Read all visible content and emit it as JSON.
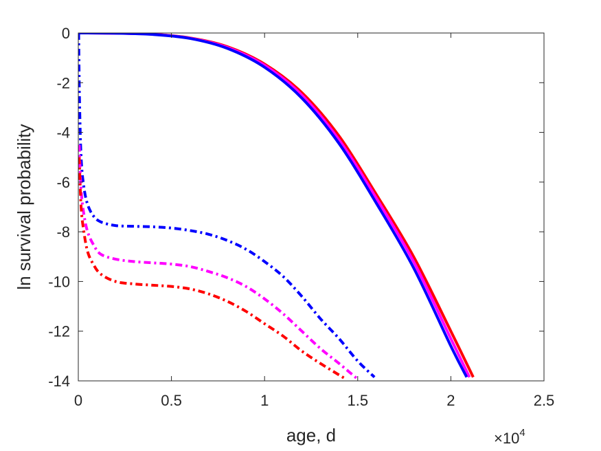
{
  "chart_data": {
    "type": "line",
    "xlabel": "age, d",
    "ylabel": "ln survival probability",
    "x_multiplier": {
      "base": "×10",
      "exponent": "4"
    },
    "xlim": [
      0,
      25000
    ],
    "ylim": [
      -14,
      0
    ],
    "xticks": [
      0,
      5000,
      10000,
      15000,
      20000,
      25000
    ],
    "xtick_labels": [
      "0",
      "0.5",
      "1",
      "1.5",
      "2",
      "2.5"
    ],
    "yticks": [
      0,
      -2,
      -4,
      -6,
      -8,
      -10,
      -12,
      -14
    ],
    "ytick_labels": [
      "0",
      "-2",
      "-4",
      "-6",
      "-8",
      "-10",
      "-12",
      "-14"
    ],
    "grid": false,
    "legend": "none",
    "series": [
      {
        "color": "#ff0000",
        "style": "solid",
        "x": [
          0,
          2000,
          4000,
          6000,
          8000,
          10000,
          12000,
          14000,
          16000,
          18000,
          20000,
          21200
        ],
        "y": [
          0,
          -0.01,
          -0.05,
          -0.2,
          -0.55,
          -1.25,
          -2.4,
          -4.15,
          -6.5,
          -9.0,
          -12.0,
          -13.85
        ]
      },
      {
        "color": "#ff00ff",
        "style": "solid",
        "x": [
          0,
          2000,
          4000,
          6000,
          8000,
          10000,
          12000,
          14000,
          16000,
          18000,
          20000,
          21000
        ],
        "y": [
          0,
          -0.01,
          -0.05,
          -0.21,
          -0.58,
          -1.3,
          -2.5,
          -4.3,
          -6.65,
          -9.2,
          -12.3,
          -13.85
        ]
      },
      {
        "color": "#0000ff",
        "style": "solid",
        "x": [
          0,
          2000,
          4000,
          6000,
          8000,
          10000,
          12000,
          14000,
          16000,
          18000,
          20000,
          20850
        ],
        "y": [
          0,
          -0.01,
          -0.06,
          -0.22,
          -0.62,
          -1.38,
          -2.62,
          -4.45,
          -6.85,
          -9.45,
          -12.6,
          -13.85
        ]
      },
      {
        "color": "#0000ff",
        "style": "dashdot",
        "x": [
          20,
          60,
          150,
          300,
          500,
          800,
          1200,
          2000,
          3000,
          4000,
          5000,
          6000,
          7000,
          8000,
          9000,
          10000,
          11000,
          12000,
          13000,
          14000,
          15000,
          15900
        ],
        "y": [
          0,
          -2.5,
          -5.0,
          -6.2,
          -6.9,
          -7.35,
          -7.6,
          -7.75,
          -7.78,
          -7.8,
          -7.85,
          -7.95,
          -8.1,
          -8.35,
          -8.7,
          -9.2,
          -9.8,
          -10.6,
          -11.5,
          -12.3,
          -13.2,
          -13.85
        ]
      },
      {
        "color": "#ff00ff",
        "style": "dashdot",
        "x": [
          50,
          150,
          300,
          500,
          800,
          1200,
          2000,
          3000,
          4000,
          5000,
          6000,
          7000,
          8000,
          9000,
          10000,
          11000,
          12000,
          13000,
          14000,
          14950
        ],
        "y": [
          -4.5,
          -6.3,
          -7.3,
          -8.0,
          -8.5,
          -8.9,
          -9.1,
          -9.2,
          -9.25,
          -9.3,
          -9.4,
          -9.6,
          -9.85,
          -10.2,
          -10.7,
          -11.3,
          -12.0,
          -12.7,
          -13.3,
          -13.9
        ]
      },
      {
        "color": "#ff0000",
        "style": "dashdot",
        "x": [
          50,
          150,
          300,
          500,
          800,
          1200,
          2000,
          3000,
          4000,
          5000,
          6000,
          7000,
          8000,
          9000,
          10000,
          11000,
          12000,
          13000,
          14300
        ],
        "y": [
          -5.0,
          -7.0,
          -8.0,
          -8.8,
          -9.3,
          -9.7,
          -10.0,
          -10.1,
          -10.15,
          -10.2,
          -10.3,
          -10.5,
          -10.8,
          -11.2,
          -11.7,
          -12.2,
          -12.8,
          -13.3,
          -13.9
        ]
      }
    ]
  }
}
